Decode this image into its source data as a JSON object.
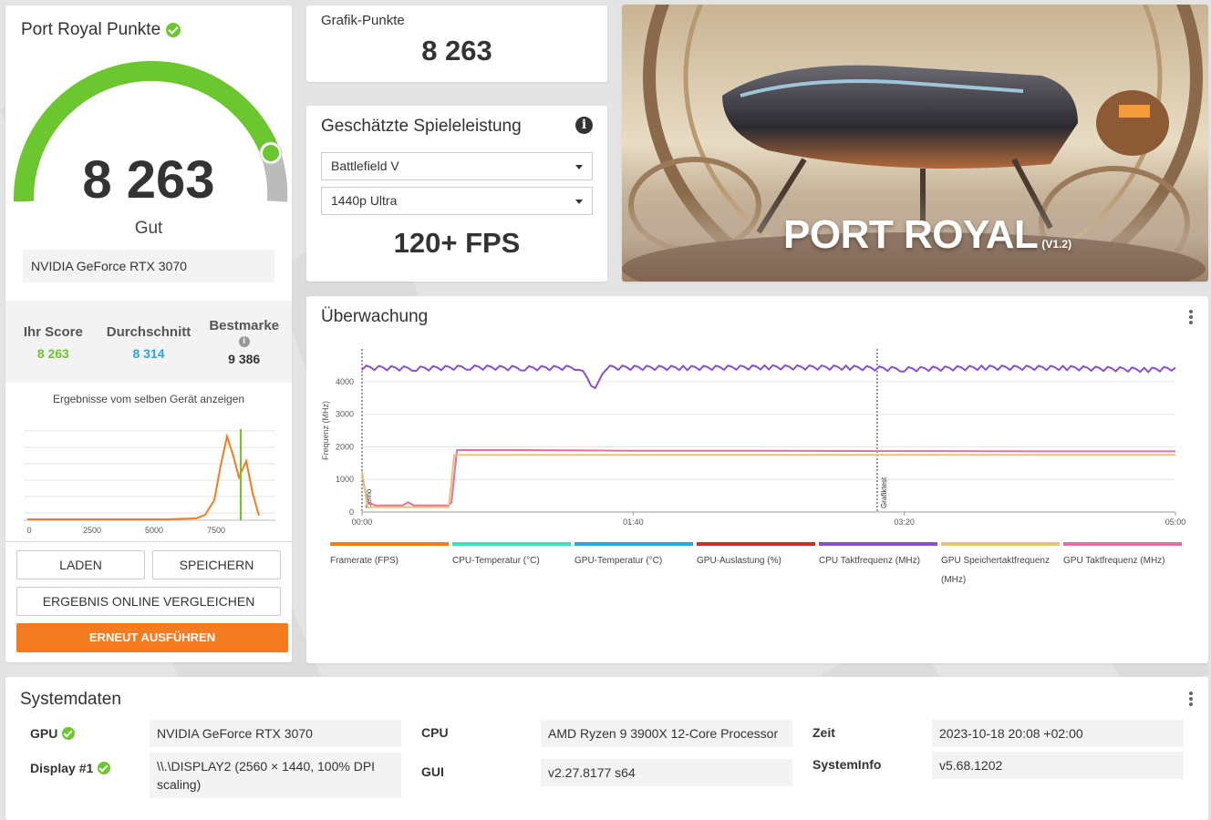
{
  "score_card": {
    "title": "Port Royal Punkte",
    "score": "8 263",
    "rating": "Gut",
    "gpu": "NVIDIA GeForce RTX 3070",
    "your_score_label": "Ihr Score",
    "your_score": "8 263",
    "average_label": "Durchschnitt",
    "average": "8 314",
    "best_label": "Bestmarke",
    "best": "9 386",
    "same_device_label": "Ergebnisse vom selben Gerät anzeigen",
    "dist_ticks": [
      "0",
      "2500",
      "5000",
      "7500"
    ],
    "buttons": {
      "load": "LADEN",
      "save": "SPEICHERN",
      "compare": "ERGEBNIS ONLINE VERGLEICHEN",
      "rerun": "ERNEUT AUSFÜHREN"
    },
    "colors": {
      "good": "#6cc62f",
      "average": "#2ba6de",
      "accent": "#f47b20"
    }
  },
  "graphics_score": {
    "label": "Grafik-Punkte",
    "value": "8 263"
  },
  "game_performance": {
    "title": "Geschätzte Spieleleistung",
    "game": "Battlefield V",
    "preset": "1440p Ultra",
    "fps": "120+ FPS"
  },
  "hero": {
    "title": "PORT ROYAL",
    "version": "(V1.2)"
  },
  "monitoring": {
    "title": "Überwachung",
    "legend": [
      {
        "label": "Framerate (FPS)",
        "color": "#f47b20"
      },
      {
        "label": "CPU-Temperatur (°C)",
        "color": "#3fe0c0"
      },
      {
        "label": "GPU-Temperatur (°C)",
        "color": "#2ba6de"
      },
      {
        "label": "GPU-Auslastung (%)",
        "color": "#c8302e"
      },
      {
        "label": "CPU Taktfrequenz (MHz)",
        "color": "#8b4fc9"
      },
      {
        "label": "GPU Speichertaktfrequenz (MHz)",
        "color": "#e2c57a"
      },
      {
        "label": "GPU Taktfrequenz (MHz)",
        "color": "#e46fa2"
      }
    ]
  },
  "chart_data": {
    "type": "line",
    "ylabel": "Frequenz (MHz)",
    "xlabel": "",
    "x_ticks": [
      "00:00",
      "01:40",
      "03:20",
      "05:00"
    ],
    "y_ticks": [
      0,
      1000,
      2000,
      3000,
      4000
    ],
    "ylim": [
      0,
      5000
    ],
    "xlim_seconds": [
      0,
      300
    ],
    "markers": [
      {
        "label": "Demo",
        "x_seconds": 0
      },
      {
        "label": "Grafiktest",
        "x_seconds": 190
      }
    ],
    "series": [
      {
        "name": "CPU Taktfrequenz (MHz)",
        "color": "#8b4fc9",
        "points": [
          [
            0,
            4450
          ],
          [
            20,
            4420
          ],
          [
            40,
            4460
          ],
          [
            60,
            4430
          ],
          [
            80,
            4450
          ],
          [
            86,
            3800
          ],
          [
            90,
            4450
          ],
          [
            120,
            4440
          ],
          [
            150,
            4460
          ],
          [
            180,
            4450
          ],
          [
            200,
            4400
          ],
          [
            230,
            4450
          ],
          [
            260,
            4440
          ],
          [
            290,
            4380
          ],
          [
            300,
            4430
          ]
        ]
      },
      {
        "name": "GPU Taktfrequenz (MHz)",
        "color": "#e46fa2",
        "points": [
          [
            0,
            1150
          ],
          [
            2,
            300
          ],
          [
            5,
            200
          ],
          [
            15,
            200
          ],
          [
            17,
            300
          ],
          [
            19,
            200
          ],
          [
            32,
            200
          ],
          [
            33,
            300
          ],
          [
            35,
            1900
          ],
          [
            60,
            1900
          ],
          [
            100,
            1880
          ],
          [
            150,
            1880
          ],
          [
            200,
            1870
          ],
          [
            250,
            1860
          ],
          [
            300,
            1860
          ]
        ]
      },
      {
        "name": "GPU Speichertaktfrequenz (MHz)",
        "color": "#e2c57a",
        "points": [
          [
            0,
            1250
          ],
          [
            2,
            150
          ],
          [
            32,
            150
          ],
          [
            34,
            1750
          ],
          [
            300,
            1750
          ]
        ]
      }
    ]
  },
  "system_data": {
    "title": "Systemdaten",
    "rows": {
      "gpu_label": "GPU",
      "gpu_value": "NVIDIA GeForce RTX 3070",
      "display_label": "Display #1",
      "display_value": "\\\\.\\DISPLAY2 (2560 × 1440, 100% DPI scaling)",
      "cpu_label": "CPU",
      "cpu_value": "AMD Ryzen 9 3900X 12-Core Processor",
      "gui_label": "GUI",
      "gui_value": "v2.27.8177 s64",
      "time_label": "Zeit",
      "time_value": "2023-10-18 20:08 +02:00",
      "sysinfo_label": "SystemInfo",
      "sysinfo_value": "v5.68.1202"
    }
  }
}
